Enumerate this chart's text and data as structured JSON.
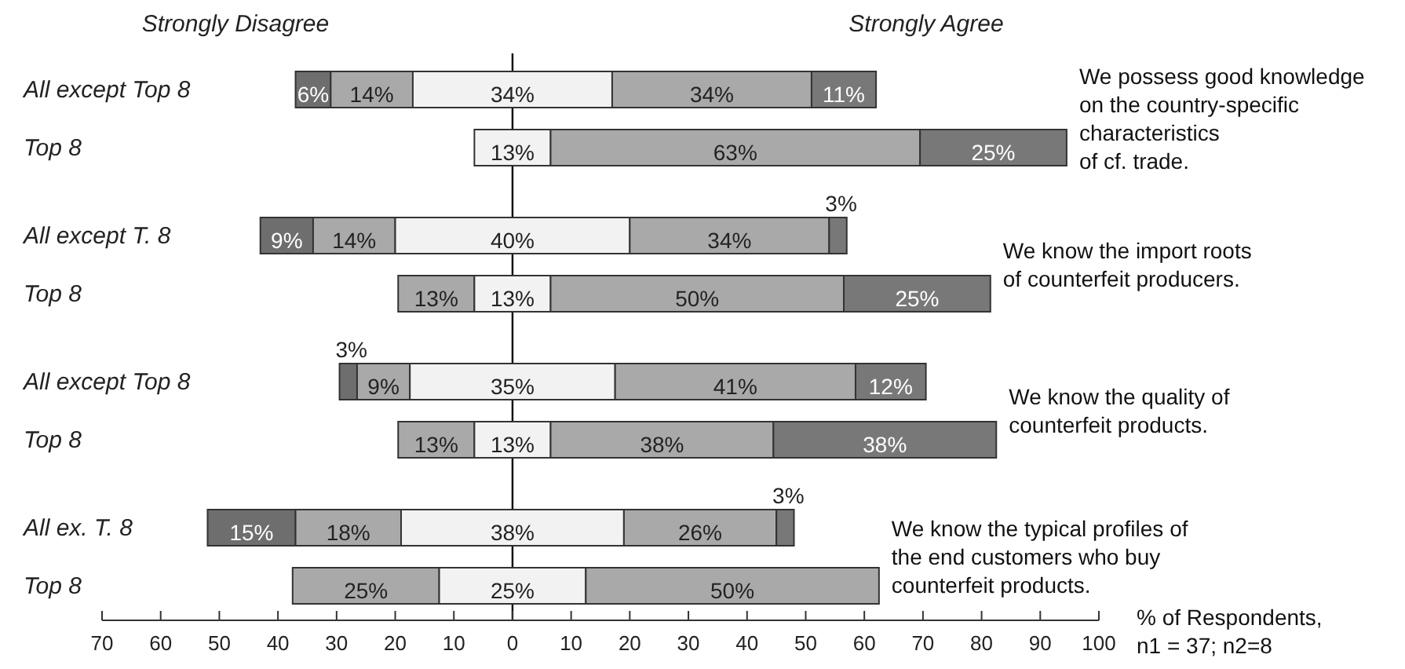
{
  "chart_data": {
    "type": "bar",
    "orientation": "horizontal",
    "categories": [
      "All except Top 8",
      "Top 8",
      "All except T. 8",
      "Top 8",
      "All except Top 8",
      "Top 8",
      "All ex. T. 8",
      "Top 8"
    ],
    "series": [
      {
        "color": "#6e6e6e",
        "base": [
          -37,
          null,
          -43,
          null,
          -29.5,
          null,
          -52,
          null
        ],
        "values": [
          6,
          null,
          9,
          null,
          3,
          null,
          15,
          null
        ],
        "value_labels": [
          "6%",
          null,
          "9%",
          null,
          "3%",
          null,
          "15%",
          null
        ]
      },
      {
        "color": "#a9a9a9",
        "base": [
          -31,
          null,
          -34,
          -19.5,
          -26.5,
          -19.5,
          -37,
          -37.5
        ],
        "values": [
          14,
          null,
          14,
          13,
          9,
          13,
          18,
          25
        ],
        "value_labels": [
          "14%",
          null,
          "14%",
          "13%",
          "9%",
          "13%",
          "18%",
          "25%"
        ]
      },
      {
        "color": "#f2f2f2",
        "base": [
          -17,
          -6.5,
          -20,
          -6.5,
          -17.5,
          -6.5,
          -19,
          -12.5
        ],
        "values": [
          34,
          13,
          40,
          13,
          35,
          13,
          38,
          25
        ],
        "value_labels": [
          "34%",
          "13%",
          "40%",
          "13%",
          "35%",
          "13%",
          "38%",
          "25%"
        ]
      },
      {
        "color": "#a9a9a9",
        "base": [
          17,
          6.5,
          20,
          6.5,
          17.5,
          6.5,
          19,
          12.5
        ],
        "values": [
          34,
          63,
          34,
          50,
          41,
          38,
          26,
          50
        ],
        "value_labels": [
          "34%",
          "63%",
          "34%",
          "50%",
          "41%",
          "38%",
          "26%",
          "50%"
        ]
      },
      {
        "color": "#787878",
        "base": [
          51,
          69.5,
          54,
          56.5,
          58.5,
          44.5,
          45,
          null
        ],
        "values": [
          11,
          25,
          3,
          25,
          12,
          38,
          3,
          null
        ],
        "value_labels": [
          "11%",
          "25%",
          "3%",
          "25%",
          "12%",
          "38%",
          "3%",
          null
        ]
      }
    ],
    "xlim": [
      -70,
      100
    ],
    "xticks": [
      {
        "value": -70,
        "label": "70"
      },
      {
        "value": -60,
        "label": "60"
      },
      {
        "value": -50,
        "label": "50"
      },
      {
        "value": -40,
        "label": "40"
      },
      {
        "value": -30,
        "label": "30"
      },
      {
        "value": -20,
        "label": "20"
      },
      {
        "value": -10,
        "label": "10"
      },
      0,
      10,
      20,
      30,
      40,
      50,
      60,
      70,
      80,
      90,
      100
    ],
    "ref_lines": [
      {
        "axis": "x",
        "value": 0,
        "color": "#000000"
      }
    ],
    "xlabel": "% of Respondents,\nn1 = 37; n2=8",
    "annotations": [
      "Strongly Disagree",
      "Strongly Agree",
      "We possess good knowledge\non the country-specific\ncharacteristics\nof cf. trade.",
      "We know the import roots\nof counterfeit producers.",
      "We know the quality of\ncounterfeit products.",
      "We know the typical profiles of\nthe end customers who buy\ncounterfeit products."
    ]
  }
}
